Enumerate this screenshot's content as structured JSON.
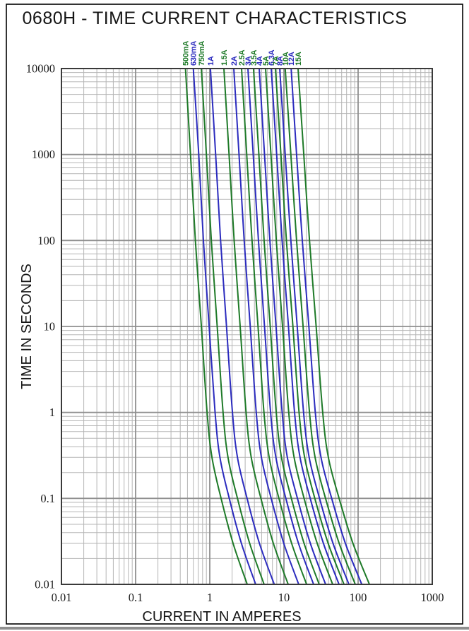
{
  "page": {
    "title": "0680H - TIME CURRENT CHARACTERISTICS"
  },
  "axes": {
    "x": {
      "label": "CURRENT IN AMPERES",
      "scale": "log",
      "min": 0.01,
      "max": 1000,
      "tick_labels": [
        "0.01",
        "0.1",
        "1",
        "10",
        "100",
        "1000"
      ]
    },
    "y": {
      "label": "TIME IN SECONDS",
      "scale": "log",
      "min": 0.01,
      "max": 10000,
      "tick_labels": [
        "10000",
        "1000",
        "100",
        "10",
        "1",
        "0.1",
        "0.01"
      ]
    }
  },
  "colors": {
    "curve_green": "#1e7a28",
    "curve_blue": "#2b2bbe",
    "grid_minor": "#b5b5b5",
    "grid_major": "#8f8f8f",
    "plot_frame": "#3a3a3a",
    "page_border": "#000000",
    "page_edge_shadow": "#8f8f8f",
    "text": "#151515"
  },
  "chart_data": {
    "type": "line",
    "title": "0680H - TIME CURRENT CHARACTERISTICS",
    "xlabel": "CURRENT IN AMPERES",
    "ylabel": "TIME IN SECONDS",
    "x_scale": "log",
    "y_scale": "log",
    "xlim": [
      0.01,
      1000
    ],
    "ylim": [
      0.01,
      10000
    ],
    "grid": "log minor + major, both axes",
    "legend_position": "rotated labels above each curve top",
    "times_seconds": [
      10000,
      1000,
      100,
      10,
      1,
      0.3,
      0.1,
      0.03,
      0.01
    ],
    "series": [
      {
        "label": "500mA",
        "color": "green",
        "currents_amps": [
          0.47,
          0.55,
          0.64,
          0.77,
          0.92,
          1.07,
          1.42,
          2.06,
          3.2
        ]
      },
      {
        "label": "630mA",
        "color": "blue",
        "currents_amps": [
          0.6,
          0.71,
          0.82,
          0.98,
          1.18,
          1.37,
          1.83,
          2.67,
          4.16
        ]
      },
      {
        "label": "750mA",
        "color": "green",
        "currents_amps": [
          0.77,
          0.9,
          1.05,
          1.26,
          1.51,
          1.76,
          2.36,
          3.45,
          5.4
        ]
      },
      {
        "label": "1A",
        "color": "blue",
        "currents_amps": [
          1.02,
          1.2,
          1.4,
          1.68,
          2.02,
          2.36,
          3.18,
          4.67,
          7.4
        ]
      },
      {
        "label": "1.5A",
        "color": "green",
        "currents_amps": [
          1.55,
          1.82,
          2.13,
          2.57,
          3.09,
          3.62,
          4.89,
          7.2,
          11.4
        ]
      },
      {
        "label": "2A",
        "color": "blue",
        "currents_amps": [
          2.11,
          2.48,
          2.91,
          3.51,
          4.23,
          4.97,
          6.73,
          9.96,
          15.8
        ]
      },
      {
        "label": "2.5A",
        "color": "green",
        "currents_amps": [
          2.68,
          3.15,
          3.71,
          4.47,
          5.38,
          6.32,
          8.55,
          12.7,
          20.2
        ]
      },
      {
        "label": "3A",
        "color": "blue",
        "currents_amps": [
          3.27,
          3.85,
          4.53,
          5.47,
          6.6,
          7.78,
          10.6,
          15.7,
          25.1
        ]
      },
      {
        "label": "3.5A",
        "color": "green",
        "currents_amps": [
          3.89,
          4.59,
          5.4,
          6.53,
          7.87,
          9.27,
          12.6,
          18.7,
          29.9
        ]
      },
      {
        "label": "4A",
        "color": "blue",
        "currents_amps": [
          4.64,
          5.47,
          6.46,
          7.82,
          9.46,
          11.1,
          15.2,
          22.7,
          36.5
        ]
      },
      {
        "label": "5A",
        "color": "green",
        "currents_amps": [
          5.65,
          6.68,
          7.89,
          9.58,
          11.6,
          13.7,
          18.7,
          28.1,
          45.4
        ]
      },
      {
        "label": "6.3A",
        "color": "blue",
        "currents_amps": [
          6.74,
          7.98,
          9.44,
          11.5,
          13.9,
          16.5,
          22.6,
          34.1,
          55.3
        ]
      },
      {
        "label": "7A",
        "color": "green",
        "currents_amps": [
          7.69,
          9.11,
          10.8,
          13.2,
          16.0,
          19.0,
          26.1,
          39.5,
          64.5
        ]
      },
      {
        "label": "8A",
        "color": "blue",
        "currents_amps": [
          8.77,
          10.4,
          12.4,
          15.1,
          18.4,
          21.9,
          30.2,
          45.9,
          75.2
        ]
      },
      {
        "label": "10A",
        "color": "green",
        "currents_amps": [
          10.4,
          12.4,
          14.8,
          18.1,
          22.1,
          26.3,
          36.4,
          55.6,
          91.6
        ]
      },
      {
        "label": "12A",
        "color": "blue",
        "currents_amps": [
          12.5,
          14.8,
          17.7,
          21.7,
          26.5,
          31.6,
          44.0,
          67.4,
          112
        ]
      },
      {
        "label": "15A",
        "color": "green",
        "currents_amps": [
          15.5,
          18.5,
          22.1,
          27.2,
          33.3,
          39.7,
          55.4,
          85.3,
          142
        ]
      }
    ]
  }
}
